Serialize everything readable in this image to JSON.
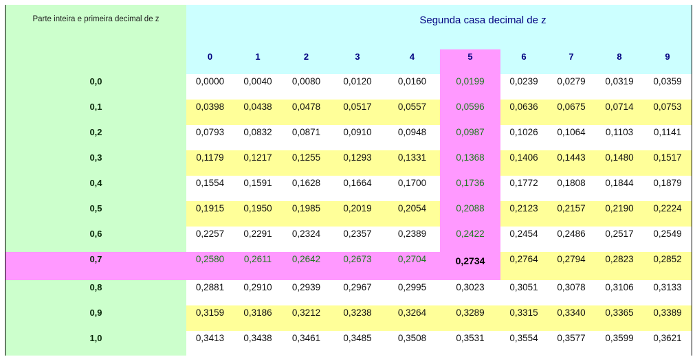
{
  "table": {
    "row_header_title": "Parte inteira e primeira decimal de z",
    "column_header_title": "Segunda casa decimal de z",
    "columns": [
      "0",
      "1",
      "2",
      "3",
      "4",
      "5",
      "6",
      "7",
      "8",
      "9"
    ],
    "highlight": {
      "row_index": 7,
      "column_index": 5,
      "row_label": "0,7",
      "column_label": "5",
      "value": "0,2734"
    },
    "colors": {
      "label_column_bg": "#ccffcc",
      "header_bg": "#ccffff",
      "alt_row_bg": "#ffff99",
      "highlight_bg": "#ff99ff",
      "header_text": "#000080",
      "highlight_text": "#1f7a1f"
    },
    "rows": [
      {
        "label": "0,0",
        "values": [
          "0,0000",
          "0,0040",
          "0,0080",
          "0,0120",
          "0,0160",
          "0,0199",
          "0,0239",
          "0,0279",
          "0,0319",
          "0,0359"
        ]
      },
      {
        "label": "0,1",
        "values": [
          "0,0398",
          "0,0438",
          "0,0478",
          "0,0517",
          "0,0557",
          "0,0596",
          "0,0636",
          "0,0675",
          "0,0714",
          "0,0753"
        ]
      },
      {
        "label": "0,2",
        "values": [
          "0,0793",
          "0,0832",
          "0,0871",
          "0,0910",
          "0,0948",
          "0,0987",
          "0,1026",
          "0,1064",
          "0,1103",
          "0,1141"
        ]
      },
      {
        "label": "0,3",
        "values": [
          "0,1179",
          "0,1217",
          "0,1255",
          "0,1293",
          "0,1331",
          "0,1368",
          "0,1406",
          "0,1443",
          "0,1480",
          "0,1517"
        ]
      },
      {
        "label": "0,4",
        "values": [
          "0,1554",
          "0,1591",
          "0,1628",
          "0,1664",
          "0,1700",
          "0,1736",
          "0,1772",
          "0,1808",
          "0,1844",
          "0,1879"
        ]
      },
      {
        "label": "0,5",
        "values": [
          "0,1915",
          "0,1950",
          "0,1985",
          "0,2019",
          "0,2054",
          "0,2088",
          "0,2123",
          "0,2157",
          "0,2190",
          "0,2224"
        ]
      },
      {
        "label": "0,6",
        "values": [
          "0,2257",
          "0,2291",
          "0,2324",
          "0,2357",
          "0,2389",
          "0,2422",
          "0,2454",
          "0,2486",
          "0,2517",
          "0,2549"
        ]
      },
      {
        "label": "0,7",
        "values": [
          "0,2580",
          "0,2611",
          "0,2642",
          "0,2673",
          "0,2704",
          "0,2734",
          "0,2764",
          "0,2794",
          "0,2823",
          "0,2852"
        ]
      },
      {
        "label": "0,8",
        "values": [
          "0,2881",
          "0,2910",
          "0,2939",
          "0,2967",
          "0,2995",
          "0,3023",
          "0,3051",
          "0,3078",
          "0,3106",
          "0,3133"
        ]
      },
      {
        "label": "0,9",
        "values": [
          "0,3159",
          "0,3186",
          "0,3212",
          "0,3238",
          "0,3264",
          "0,3289",
          "0,3315",
          "0,3340",
          "0,3365",
          "0,3389"
        ]
      },
      {
        "label": "1,0",
        "values": [
          "0,3413",
          "0,3438",
          "0,3461",
          "0,3485",
          "0,3508",
          "0,3531",
          "0,3554",
          "0,3577",
          "0,3599",
          "0,3621"
        ]
      }
    ]
  }
}
